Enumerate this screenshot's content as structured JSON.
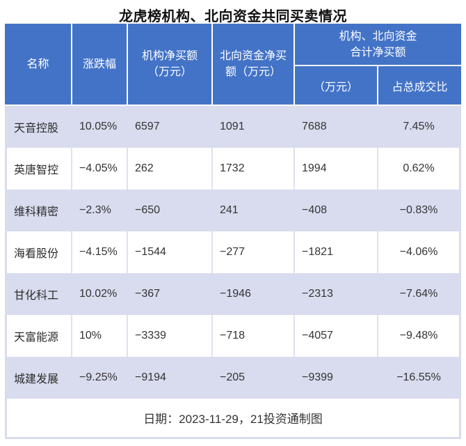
{
  "title": "龙虎榜机构、北向资金共同买卖情况",
  "header": {
    "col_name": "名称",
    "col_change": "涨跌幅",
    "col_inst": "机构净买额\n（万元）",
    "col_north": "北向资金净买\n额（万元）",
    "group_label": "机构、北向资金\n合计净买额",
    "sub_amount": "（万元）",
    "sub_ratio": "占总成交比"
  },
  "rows": [
    {
      "name": "天音控股",
      "change": "10.05%",
      "inst": "6597",
      "north": "1091",
      "total": "7688",
      "ratio": "7.45%"
    },
    {
      "name": "英唐智控",
      "change": "−4.05%",
      "inst": "262",
      "north": "1732",
      "total": "1994",
      "ratio": "0.62%"
    },
    {
      "name": "维科精密",
      "change": "−2.3%",
      "inst": "−650",
      "north": "241",
      "total": "−408",
      "ratio": "−0.83%"
    },
    {
      "name": "海看股份",
      "change": "−4.15%",
      "inst": "−1544",
      "north": "−277",
      "total": "−1821",
      "ratio": "−4.06%"
    },
    {
      "name": "甘化科工",
      "change": "10.02%",
      "inst": "−367",
      "north": "−1946",
      "total": "−2313",
      "ratio": "−7.64%"
    },
    {
      "name": "天富能源",
      "change": "10%",
      "inst": "−3339",
      "north": "−718",
      "total": "−4057",
      "ratio": "−9.48%"
    },
    {
      "name": "城建发展",
      "change": "−9.25%",
      "inst": "−9194",
      "north": "−205",
      "total": "−9399",
      "ratio": "−16.55%"
    }
  ],
  "footer": "日期：2023-11-29，21投资通制图",
  "colors": {
    "header_bg": "#4373C7",
    "row_alt_bg": "#D9DCEF",
    "row_bg": "#FFFFFF",
    "divider": "#DEE1F1",
    "header_text": "#FFFFFF",
    "cell_text": "#333333"
  },
  "chart_data": {
    "type": "table",
    "title": "龙虎榜机构、北向资金共同买卖情况",
    "columns": [
      "名称",
      "涨跌幅",
      "机构净买额（万元）",
      "北向资金净买额（万元）",
      "机构、北向资金合计净买额（万元）",
      "机构、北向资金合计净买额占总成交比"
    ],
    "rows": [
      [
        "天音控股",
        "10.05%",
        6597,
        1091,
        7688,
        "7.45%"
      ],
      [
        "英唐智控",
        "-4.05%",
        262,
        1732,
        1994,
        "0.62%"
      ],
      [
        "维科精密",
        "-2.3%",
        -650,
        241,
        -408,
        "-0.83%"
      ],
      [
        "海看股份",
        "-4.15%",
        -1544,
        -277,
        -1821,
        "-4.06%"
      ],
      [
        "甘化科工",
        "10.02%",
        -367,
        -1946,
        -2313,
        "-7.64%"
      ],
      [
        "天富能源",
        "10%",
        -3339,
        -718,
        -4057,
        "-9.48%"
      ],
      [
        "城建发展",
        "-9.25%",
        -9194,
        -205,
        -9399,
        "-16.55%"
      ]
    ],
    "note": "日期：2023-11-29，21投资通制图"
  }
}
